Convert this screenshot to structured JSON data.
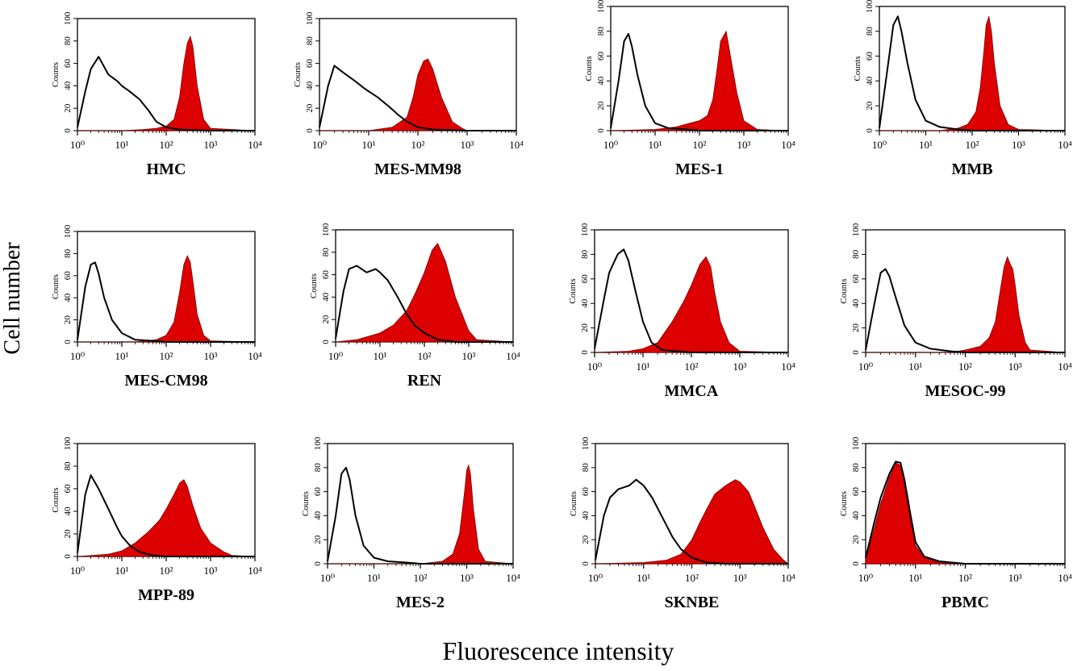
{
  "figure": {
    "y_axis_title": "Cell number",
    "x_axis_title": "Fluorescence intensity"
  },
  "colors": {
    "filled_histogram": "#dd0000",
    "control_histogram": "#000000",
    "frame": "#000000",
    "background": "#ffffff"
  },
  "chart_data": [
    {
      "type": "area",
      "title": "HMC",
      "ylabel": "Counts",
      "xscale": "log",
      "xlim": [
        1,
        10000
      ],
      "ylim": [
        0,
        100
      ],
      "x_ticks": [
        "10⁰",
        "10¹",
        "10²",
        "10³",
        "10⁴"
      ],
      "y_ticks": [
        "0",
        "20",
        "40",
        "60",
        "80",
        "100"
      ],
      "series": [
        {
          "fill": false,
          "x": [
            1,
            1.5,
            2,
            3,
            5,
            8,
            10,
            15,
            25,
            40,
            60,
            100,
            200,
            1000,
            10000
          ],
          "y": [
            3,
            35,
            55,
            66,
            50,
            44,
            40,
            35,
            28,
            18,
            8,
            3,
            1,
            0,
            0
          ]
        },
        {
          "fill": true,
          "x": [
            1,
            10,
            30,
            60,
            100,
            150,
            200,
            250,
            300,
            350,
            400,
            500,
            700,
            1000,
            10000
          ],
          "y": [
            0,
            0,
            1,
            2,
            4,
            10,
            30,
            60,
            78,
            84,
            75,
            40,
            10,
            2,
            0
          ]
        }
      ]
    },
    {
      "type": "area",
      "title": "MES-MM98",
      "ylabel": "Counts",
      "xscale": "log",
      "xlim": [
        1,
        10000
      ],
      "ylim": [
        0,
        100
      ],
      "x_ticks": [
        "10⁰",
        "10¹",
        "10²",
        "10³",
        "10⁴"
      ],
      "y_ticks": [
        "0",
        "20",
        "40",
        "60",
        "80",
        "100"
      ],
      "series": [
        {
          "fill": false,
          "x": [
            1,
            1.5,
            2,
            3,
            5,
            8,
            10,
            15,
            25,
            40,
            60,
            100,
            200,
            1000,
            10000
          ],
          "y": [
            3,
            40,
            58,
            52,
            45,
            38,
            35,
            30,
            22,
            14,
            8,
            3,
            1,
            0,
            0
          ]
        },
        {
          "fill": true,
          "x": [
            1,
            10,
            30,
            60,
            80,
            100,
            130,
            160,
            200,
            300,
            500,
            800,
            1000,
            10000
          ],
          "y": [
            0,
            0,
            3,
            12,
            30,
            50,
            62,
            64,
            55,
            30,
            8,
            2,
            0,
            0
          ]
        }
      ]
    },
    {
      "type": "area",
      "title": "MES-1",
      "ylabel": "Counts",
      "xscale": "log",
      "xlim": [
        1,
        10000
      ],
      "ylim": [
        0,
        100
      ],
      "x_ticks": [
        "10⁰",
        "10¹",
        "10²",
        "10³",
        "10⁴"
      ],
      "y_ticks": [
        "0",
        "20",
        "40",
        "60",
        "80",
        "100"
      ],
      "series": [
        {
          "fill": false,
          "x": [
            1,
            1.5,
            2,
            2.5,
            3,
            4,
            6,
            10,
            20,
            50,
            100,
            1000,
            10000
          ],
          "y": [
            2,
            40,
            72,
            78,
            68,
            45,
            20,
            6,
            2,
            1,
            0,
            0,
            0
          ]
        },
        {
          "fill": true,
          "x": [
            1,
            10,
            30,
            60,
            100,
            150,
            200,
            250,
            300,
            400,
            500,
            700,
            1000,
            2000,
            10000
          ],
          "y": [
            0,
            1,
            3,
            6,
            8,
            12,
            25,
            50,
            72,
            80,
            60,
            30,
            8,
            1,
            0
          ]
        }
      ]
    },
    {
      "type": "area",
      "title": "MMB",
      "ylabel": "Counts",
      "xscale": "log",
      "xlim": [
        1,
        10000
      ],
      "ylim": [
        0,
        100
      ],
      "x_ticks": [
        "10⁰",
        "10¹",
        "10²",
        "10³",
        "10⁴"
      ],
      "y_ticks": [
        "0",
        "20",
        "40",
        "60",
        "80",
        "100"
      ],
      "series": [
        {
          "fill": false,
          "x": [
            1,
            1.5,
            2,
            2.5,
            3,
            4,
            6,
            10,
            20,
            50,
            100,
            1000,
            10000
          ],
          "y": [
            2,
            50,
            85,
            92,
            80,
            55,
            25,
            8,
            3,
            1,
            0,
            0,
            0
          ]
        },
        {
          "fill": true,
          "x": [
            1,
            20,
            50,
            80,
            120,
            150,
            180,
            200,
            230,
            260,
            300,
            400,
            600,
            1000,
            10000
          ],
          "y": [
            0,
            0,
            2,
            5,
            15,
            35,
            65,
            85,
            92,
            80,
            55,
            20,
            5,
            1,
            0
          ]
        }
      ]
    },
    {
      "type": "area",
      "title": "MES-CM98",
      "ylabel": "Counts",
      "xscale": "log",
      "xlim": [
        1,
        10000
      ],
      "ylim": [
        0,
        100
      ],
      "x_ticks": [
        "10⁰",
        "10¹",
        "10²",
        "10³",
        "10⁴"
      ],
      "y_ticks": [
        "0",
        "20",
        "40",
        "60",
        "80",
        "100"
      ],
      "series": [
        {
          "fill": false,
          "x": [
            1,
            1.5,
            2,
            2.5,
            3,
            4,
            6,
            10,
            20,
            50,
            100,
            1000,
            10000
          ],
          "y": [
            2,
            50,
            70,
            72,
            62,
            40,
            20,
            8,
            2,
            1,
            0,
            0,
            0
          ]
        },
        {
          "fill": true,
          "x": [
            1,
            20,
            60,
            100,
            150,
            200,
            250,
            300,
            350,
            400,
            500,
            700,
            1000,
            10000
          ],
          "y": [
            0,
            0,
            2,
            6,
            18,
            45,
            70,
            78,
            72,
            55,
            25,
            6,
            1,
            0
          ]
        }
      ]
    },
    {
      "type": "area",
      "title": "REN",
      "ylabel": "Counts",
      "xscale": "log",
      "xlim": [
        1,
        10000
      ],
      "ylim": [
        0,
        100
      ],
      "x_ticks": [
        "10⁰",
        "10¹",
        "10²",
        "10³",
        "10⁴"
      ],
      "y_ticks": [
        "0",
        "20",
        "40",
        "60",
        "80",
        "100"
      ],
      "series": [
        {
          "fill": false,
          "x": [
            1,
            1.5,
            2,
            3,
            5,
            8,
            10,
            15,
            25,
            40,
            60,
            100,
            200,
            500,
            10000
          ],
          "y": [
            3,
            45,
            65,
            68,
            62,
            65,
            62,
            55,
            40,
            25,
            15,
            8,
            2,
            0,
            0
          ]
        },
        {
          "fill": true,
          "x": [
            1,
            3,
            10,
            20,
            40,
            60,
            100,
            150,
            200,
            300,
            500,
            1000,
            1500,
            10000
          ],
          "y": [
            0,
            2,
            8,
            15,
            28,
            42,
            62,
            82,
            88,
            72,
            40,
            10,
            2,
            0
          ]
        }
      ]
    },
    {
      "type": "area",
      "title": "MMCA",
      "ylabel": "Counts",
      "xscale": "log",
      "xlim": [
        1,
        10000
      ],
      "ylim": [
        0,
        100
      ],
      "x_ticks": [
        "10⁰",
        "10¹",
        "10²",
        "10³",
        "10⁴"
      ],
      "y_ticks": [
        "0",
        "20",
        "40",
        "60",
        "80",
        "100"
      ],
      "series": [
        {
          "fill": false,
          "x": [
            1,
            1.5,
            2,
            3,
            4,
            5,
            7,
            10,
            15,
            25,
            50,
            100,
            10000
          ],
          "y": [
            3,
            40,
            65,
            80,
            84,
            75,
            50,
            25,
            8,
            2,
            1,
            0,
            0
          ]
        },
        {
          "fill": true,
          "x": [
            1,
            5,
            10,
            20,
            40,
            70,
            100,
            150,
            200,
            250,
            300,
            400,
            600,
            1000,
            10000
          ],
          "y": [
            0,
            1,
            3,
            8,
            25,
            42,
            55,
            72,
            78,
            70,
            50,
            25,
            8,
            1,
            0
          ]
        }
      ]
    },
    {
      "type": "area",
      "title": "MESOC-99",
      "ylabel": "Counts",
      "xscale": "log",
      "xlim": [
        1,
        10000
      ],
      "ylim": [
        0,
        100
      ],
      "x_ticks": [
        "10⁰",
        "10¹",
        "10²",
        "10³",
        "10⁴"
      ],
      "y_ticks": [
        "0",
        "20",
        "40",
        "60",
        "80",
        "100"
      ],
      "series": [
        {
          "fill": false,
          "x": [
            1,
            1.5,
            2,
            2.5,
            3,
            4,
            6,
            10,
            20,
            50,
            100,
            1000,
            10000
          ],
          "y": [
            2,
            40,
            65,
            68,
            62,
            45,
            22,
            8,
            3,
            1,
            0,
            0,
            0
          ]
        },
        {
          "fill": true,
          "x": [
            1,
            50,
            100,
            200,
            300,
            400,
            500,
            600,
            700,
            800,
            900,
            1000,
            1200,
            1600,
            2000,
            10000
          ],
          "y": [
            0,
            0,
            2,
            5,
            12,
            25,
            50,
            70,
            78,
            72,
            68,
            55,
            30,
            8,
            2,
            0
          ]
        }
      ]
    },
    {
      "type": "area",
      "title": "MPP-89",
      "ylabel": "Counts",
      "xscale": "log",
      "xlim": [
        1,
        10000
      ],
      "ylim": [
        0,
        100
      ],
      "x_ticks": [
        "10⁰",
        "10¹",
        "10²",
        "10³",
        "10⁴"
      ],
      "y_ticks": [
        "0",
        "20",
        "40",
        "60",
        "80",
        "100"
      ],
      "series": [
        {
          "fill": false,
          "x": [
            1,
            1.5,
            2,
            3,
            5,
            8,
            10,
            15,
            25,
            50,
            100,
            10000
          ],
          "y": [
            3,
            55,
            72,
            60,
            42,
            25,
            18,
            10,
            4,
            1,
            0,
            0
          ]
        },
        {
          "fill": true,
          "x": [
            1,
            5,
            10,
            20,
            40,
            70,
            100,
            150,
            200,
            250,
            300,
            400,
            600,
            1000,
            2000,
            3000,
            10000
          ],
          "y": [
            0,
            2,
            5,
            12,
            22,
            32,
            42,
            55,
            65,
            68,
            62,
            45,
            25,
            12,
            4,
            1,
            0
          ]
        }
      ]
    },
    {
      "type": "area",
      "title": "MES-2",
      "ylabel": "Counts",
      "xscale": "log",
      "xlim": [
        1,
        10000
      ],
      "ylim": [
        0,
        100
      ],
      "x_ticks": [
        "10⁰",
        "10¹",
        "10²",
        "10³",
        "10⁴"
      ],
      "y_ticks": [
        "0",
        "20",
        "40",
        "60",
        "80",
        "100"
      ],
      "series": [
        {
          "fill": false,
          "x": [
            1,
            1.5,
            2,
            2.5,
            3,
            4,
            6,
            10,
            20,
            50,
            100,
            1000,
            10000
          ],
          "y": [
            2,
            40,
            75,
            80,
            70,
            40,
            15,
            5,
            2,
            1,
            0,
            0,
            0
          ]
        },
        {
          "fill": true,
          "x": [
            1,
            100,
            300,
            500,
            700,
            900,
            1000,
            1100,
            1200,
            1400,
            1800,
            2500,
            10000
          ],
          "y": [
            0,
            0,
            2,
            8,
            25,
            60,
            78,
            82,
            75,
            45,
            12,
            2,
            0
          ]
        }
      ]
    },
    {
      "type": "area",
      "title": "SKNBE",
      "ylabel": "Counts",
      "xscale": "log",
      "xlim": [
        1,
        10000
      ],
      "ylim": [
        0,
        100
      ],
      "x_ticks": [
        "10⁰",
        "10¹",
        "10²",
        "10³",
        "10⁴"
      ],
      "y_ticks": [
        "0",
        "20",
        "40",
        "60",
        "80",
        "100"
      ],
      "series": [
        {
          "fill": false,
          "x": [
            1,
            1.5,
            2,
            3,
            5,
            7,
            10,
            15,
            25,
            40,
            60,
            100,
            200,
            500,
            10000
          ],
          "y": [
            3,
            40,
            55,
            62,
            65,
            70,
            65,
            55,
            38,
            22,
            12,
            5,
            1,
            0,
            0
          ]
        },
        {
          "fill": true,
          "x": [
            1,
            10,
            30,
            60,
            100,
            150,
            200,
            300,
            500,
            800,
            1000,
            1500,
            2000,
            3000,
            5000,
            8000,
            10000
          ],
          "y": [
            0,
            1,
            3,
            8,
            20,
            35,
            45,
            58,
            65,
            70,
            68,
            60,
            48,
            30,
            12,
            3,
            0
          ]
        }
      ]
    },
    {
      "type": "area",
      "title": "PBMC",
      "ylabel": "Counts",
      "xscale": "log",
      "xlim": [
        1,
        10000
      ],
      "ylim": [
        0,
        100
      ],
      "x_ticks": [
        "10⁰",
        "10¹",
        "10²",
        "10³",
        "10⁴"
      ],
      "y_ticks": [
        "0",
        "20",
        "40",
        "60",
        "80",
        "100"
      ],
      "series": [
        {
          "fill": false,
          "x": [
            1,
            1.5,
            2,
            3,
            4,
            5,
            6,
            8,
            10,
            15,
            30,
            100,
            10000
          ],
          "y": [
            5,
            35,
            55,
            75,
            85,
            84,
            70,
            40,
            18,
            6,
            2,
            0,
            0
          ]
        },
        {
          "fill": true,
          "x": [
            1,
            1.5,
            2,
            3,
            4,
            5,
            6,
            8,
            10,
            15,
            30,
            100,
            10000
          ],
          "y": [
            3,
            30,
            50,
            72,
            84,
            82,
            65,
            35,
            15,
            5,
            1,
            0,
            0
          ]
        }
      ]
    }
  ]
}
